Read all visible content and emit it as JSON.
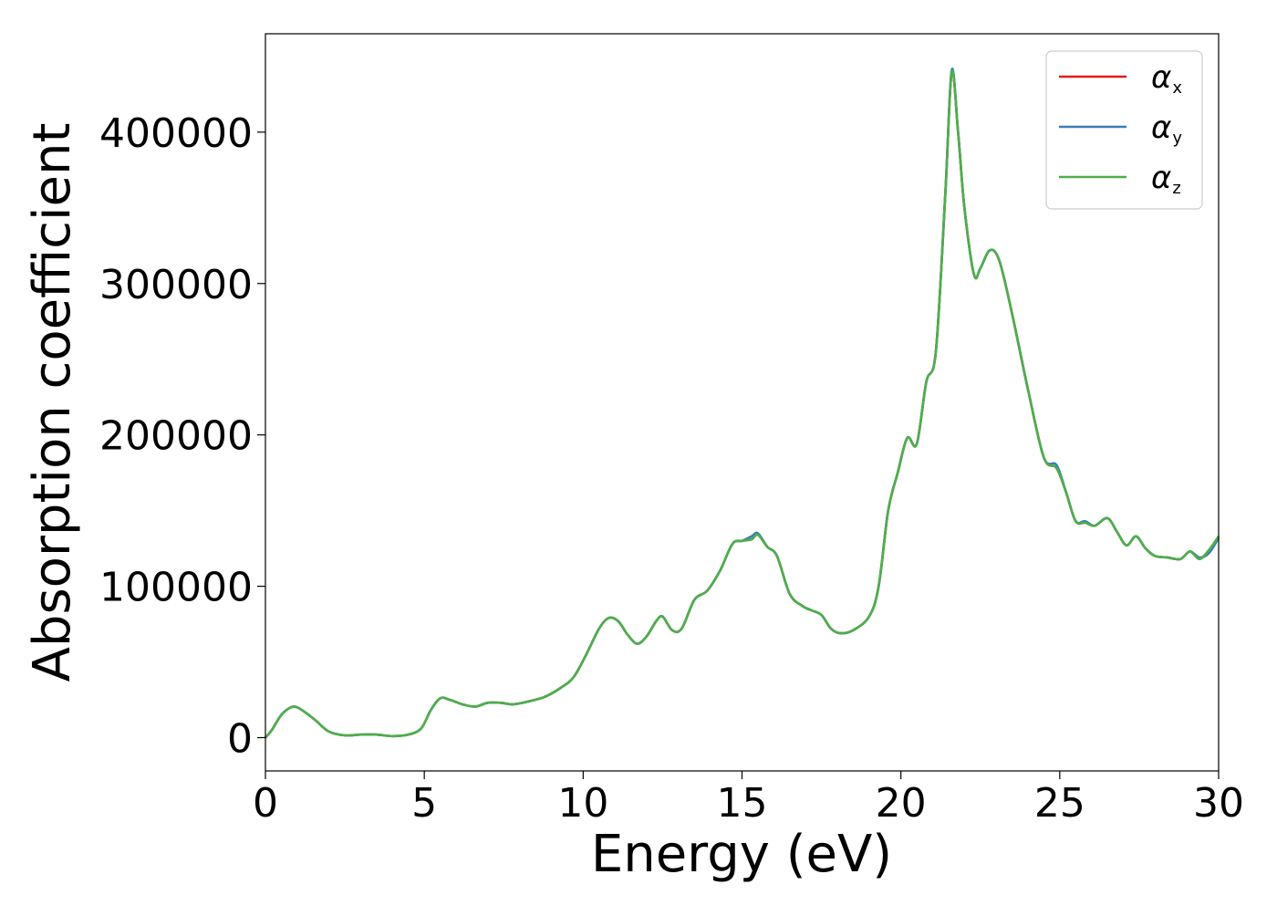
{
  "chart_data": {
    "type": "line",
    "title": "",
    "xlabel": "Energy (eV)",
    "ylabel": "Absorption coefficient",
    "xlim": [
      0,
      30
    ],
    "ylim": [
      -22000,
      465000
    ],
    "xticks": [
      0,
      5,
      10,
      15,
      20,
      25,
      30
    ],
    "xtick_labels": [
      "0",
      "5",
      "10",
      "15",
      "20",
      "25",
      "30"
    ],
    "yticks": [
      0,
      100000,
      200000,
      300000,
      400000
    ],
    "ytick_labels": [
      "0",
      "100000",
      "200000",
      "300000",
      "400000"
    ],
    "grid": false,
    "legend": "top-right",
    "x": [
      0,
      0.2,
      0.5,
      0.8,
      1.0,
      1.3,
      1.6,
      2.0,
      2.5,
      3.0,
      3.5,
      4.0,
      4.5,
      4.9,
      5.2,
      5.5,
      5.8,
      6.2,
      6.6,
      7.0,
      7.4,
      7.8,
      8.3,
      8.8,
      9.3,
      9.7,
      10.1,
      10.5,
      10.8,
      11.1,
      11.4,
      11.7,
      12.0,
      12.3,
      12.5,
      12.8,
      13.1,
      13.5,
      13.9,
      14.3,
      14.7,
      15.0,
      15.3,
      15.5,
      15.8,
      16.1,
      16.5,
      16.9,
      17.2,
      17.5,
      17.8,
      18.1,
      18.5,
      19.0,
      19.3,
      19.6,
      19.9,
      20.2,
      20.5,
      20.8,
      21.1,
      21.4,
      21.6,
      21.8,
      22.0,
      22.3,
      22.5,
      22.8,
      23.1,
      23.5,
      24.0,
      24.5,
      24.9,
      25.2,
      25.5,
      25.8,
      26.1,
      26.5,
      26.8,
      27.1,
      27.4,
      27.7,
      28.0,
      28.4,
      28.8,
      29.1,
      29.4,
      29.7,
      30.0
    ],
    "series": [
      {
        "name": "αx",
        "color": "#e41a1c",
        "y": [
          0,
          5000,
          15000,
          20000,
          20000,
          16000,
          11000,
          4000,
          1500,
          2000,
          2000,
          1000,
          2000,
          6000,
          18000,
          26000,
          25000,
          22000,
          20500,
          23000,
          23000,
          22000,
          24000,
          27000,
          33000,
          40000,
          55000,
          72000,
          79000,
          77000,
          68000,
          62000,
          67000,
          77000,
          80000,
          71000,
          72000,
          91000,
          97000,
          110000,
          128000,
          130000,
          131000,
          134000,
          126000,
          120000,
          95000,
          87000,
          84000,
          81000,
          72000,
          69000,
          71000,
          80000,
          100000,
          150000,
          175000,
          198000,
          194000,
          235000,
          255000,
          360000,
          440000,
          400000,
          350000,
          306000,
          310000,
          322000,
          315000,
          280000,
          230000,
          185000,
          178000,
          162000,
          143000,
          142000,
          140000,
          145000,
          136000,
          127000,
          133000,
          125000,
          120000,
          119000,
          118000,
          123000,
          118000,
          124000,
          133000
        ]
      },
      {
        "name": "αy",
        "color": "#377eb8",
        "y": [
          0,
          5000,
          15000,
          20000,
          20000,
          16000,
          11000,
          4000,
          1500,
          2000,
          2000,
          1000,
          2000,
          6000,
          18000,
          26000,
          25000,
          22000,
          20500,
          23000,
          23000,
          22000,
          24000,
          27000,
          33000,
          40000,
          55000,
          72000,
          79000,
          77000,
          68000,
          62000,
          67000,
          77000,
          80000,
          71000,
          72000,
          91000,
          97000,
          110000,
          128000,
          130000,
          133000,
          135000,
          126000,
          120000,
          95000,
          87000,
          84000,
          81000,
          72000,
          69000,
          71000,
          80000,
          100000,
          150000,
          175000,
          198000,
          194000,
          235000,
          255000,
          360000,
          441000,
          400000,
          350000,
          306000,
          310000,
          322000,
          315000,
          280000,
          230000,
          185000,
          180000,
          162000,
          143000,
          143000,
          140000,
          145000,
          136000,
          127000,
          133000,
          125000,
          120000,
          119000,
          118000,
          123000,
          119000,
          122000,
          132000
        ]
      },
      {
        "name": "αz",
        "color": "#4daf4a",
        "y": [
          0,
          5000,
          15000,
          20000,
          20000,
          16000,
          11000,
          4000,
          1500,
          2000,
          2000,
          1000,
          2000,
          6000,
          18000,
          26000,
          25000,
          22000,
          20500,
          23000,
          23000,
          22000,
          24000,
          27000,
          33000,
          40000,
          55000,
          72000,
          79000,
          77000,
          68000,
          62000,
          67000,
          77000,
          80000,
          71000,
          72000,
          91000,
          97000,
          110000,
          128000,
          130000,
          131000,
          134000,
          126000,
          120000,
          95000,
          87000,
          84000,
          81000,
          72000,
          69000,
          71000,
          80000,
          100000,
          150000,
          175000,
          198000,
          194000,
          235000,
          255000,
          360000,
          440000,
          400000,
          350000,
          306000,
          310000,
          322000,
          315000,
          280000,
          230000,
          185000,
          178000,
          162000,
          143000,
          142000,
          140000,
          145000,
          136000,
          127000,
          133000,
          125000,
          120000,
          119000,
          118000,
          123000,
          118000,
          124000,
          133000
        ]
      }
    ]
  },
  "legend_labels": [
    {
      "main": "α",
      "sub": "x"
    },
    {
      "main": "α",
      "sub": "y"
    },
    {
      "main": "α",
      "sub": "z"
    }
  ]
}
